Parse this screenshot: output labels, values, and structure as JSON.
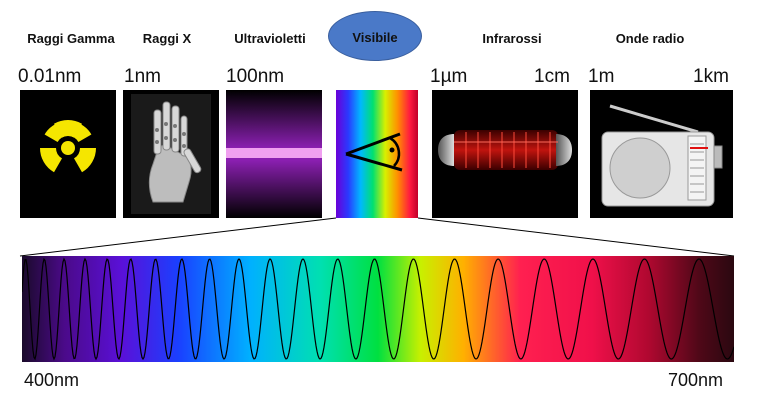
{
  "bands": {
    "gamma": "Raggi Gamma",
    "xray": "Raggi X",
    "uv": "Ultravioletti",
    "visible": "Visibile",
    "infrared": "Infrarossi",
    "radio": "Onde radio"
  },
  "scale": {
    "gamma": "0.01nm",
    "xray": "1nm",
    "uv": "100nm",
    "ir_start": "1µm",
    "ir_end": "1cm",
    "radio_start": "1m",
    "radio_end": "1km"
  },
  "spectrum": {
    "start_label": "400nm",
    "end_label": "700nm"
  },
  "colors": {
    "ellipse": "#4a79c8",
    "radiation_yellow": "#f5e600",
    "uv_purple": "#8a1fb0",
    "infrared_red": "#c0140e"
  }
}
